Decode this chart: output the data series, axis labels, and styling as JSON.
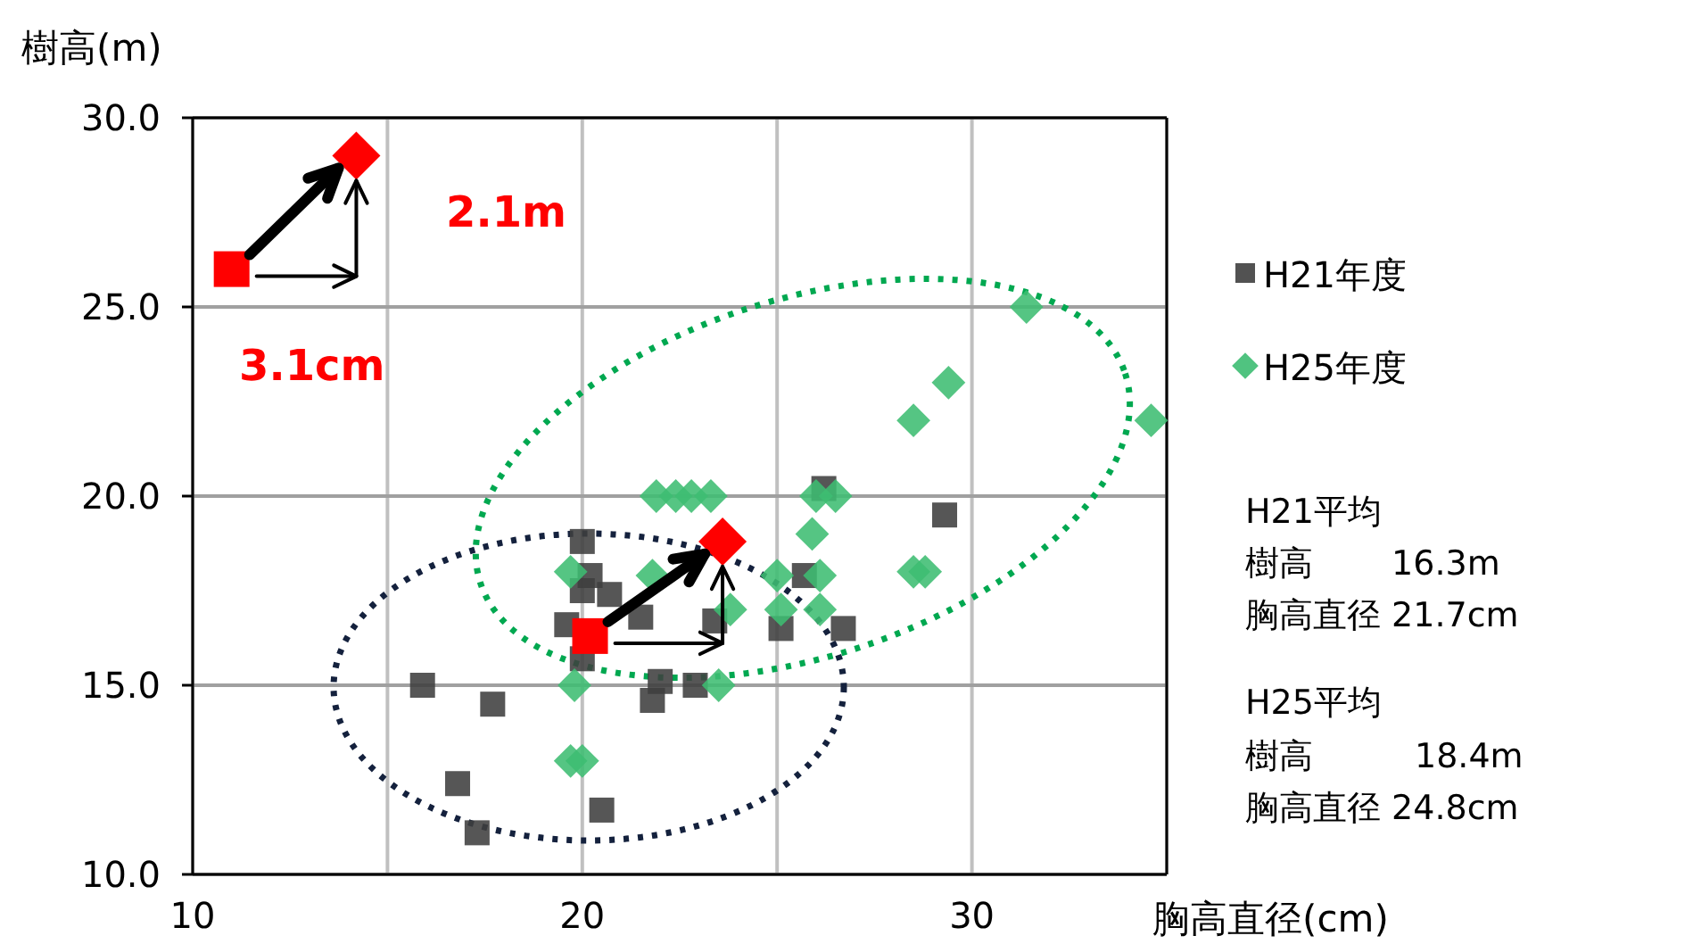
{
  "chart_data": {
    "type": "scatter",
    "xlabel": "胸高直径(cm)",
    "ylabel": "樹高(m)",
    "xlim": [
      10,
      35
    ],
    "ylim": [
      10,
      30
    ],
    "xticks": [
      10,
      {
        "value": 15,
        "label": null
      },
      20,
      {
        "value": 25,
        "label": null
      },
      30,
      {
        "value": 35,
        "label": null
      }
    ],
    "yticks": [
      {
        "value": 10,
        "label": "10.0"
      },
      {
        "value": 15,
        "label": "15.0"
      },
      {
        "value": 20,
        "label": "20.0"
      },
      {
        "value": 25,
        "label": "25.0"
      },
      {
        "value": 30,
        "label": "30.0"
      }
    ],
    "grid": true,
    "legend": "right",
    "series": [
      {
        "name": "H21年度",
        "color": "#3f3f3f",
        "marker": "square",
        "x": [
          20.0,
          20.2,
          20.0,
          20.7,
          19.6,
          20.0,
          15.9,
          17.7,
          16.8,
          17.3,
          20.5,
          21.5,
          22.0,
          21.8,
          22.9,
          23.4,
          25.1,
          25.7,
          26.2,
          26.7,
          29.3
        ],
        "values": [
          18.8,
          17.9,
          17.5,
          17.4,
          16.6,
          15.7,
          15.0,
          14.5,
          12.4,
          11.1,
          11.7,
          16.8,
          15.1,
          14.6,
          15.0,
          16.7,
          16.5,
          17.9,
          20.2,
          16.5,
          19.5
        ]
      },
      {
        "name": "H25年度",
        "color": "#3dbd72",
        "marker": "diamond",
        "x": [
          19.7,
          21.9,
          22.4,
          22.8,
          23.3,
          21.8,
          23.8,
          19.8,
          23.5,
          19.7,
          20.0,
          25.0,
          25.1,
          26.1,
          26.1,
          25.9,
          26.0,
          26.5,
          31.4,
          29.4,
          28.5,
          34.6,
          28.5,
          28.8
        ],
        "values": [
          18.0,
          20.0,
          20.0,
          20.0,
          20.0,
          17.9,
          17.0,
          15.0,
          15.0,
          13.0,
          13.0,
          17.9,
          17.0,
          17.9,
          17.0,
          19.0,
          20.0,
          20.0,
          25.0,
          23.0,
          22.0,
          22.0,
          18.0,
          18.0
        ]
      },
      {
        "color": "#ff0000",
        "marker": "square",
        "x": [
          20.2,
          11.0
        ],
        "values": [
          16.3,
          26.0
        ]
      },
      {
        "color": "#ff0000",
        "marker": "diamond",
        "x": [
          23.6,
          14.2
        ],
        "values": [
          18.8,
          29.0
        ]
      }
    ],
    "annotations": [
      "2.1m",
      "3.1cm",
      "H21平均",
      "樹高　　 16.3m",
      "胸高直径 21.7cm",
      "H25平均",
      "樹高　　　18.4m",
      "胸高直径 24.8cm"
    ]
  }
}
